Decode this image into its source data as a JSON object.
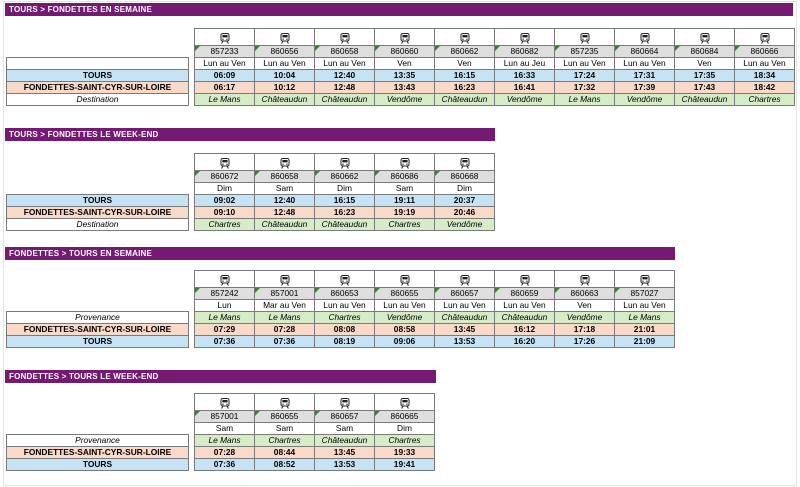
{
  "sections": [
    {
      "title": "TOURS > FONDETTES EN SEMAINE",
      "trains": [
        "857233",
        "860656",
        "860658",
        "860660",
        "860662",
        "860682",
        "857235",
        "860664",
        "860684",
        "860666"
      ],
      "days": [
        "Lun au Ven",
        "Lun au Ven",
        "Lun au Ven",
        "Ven",
        "Ven",
        "Lun au Jeu",
        "Lun au Ven",
        "Lun au Ven",
        "Ven",
        "Lun au Ven"
      ],
      "rows": [
        {
          "label": "TOURS",
          "values": [
            "06:09",
            "10:04",
            "12:40",
            "13:35",
            "16:15",
            "16:33",
            "17:24",
            "17:31",
            "17:35",
            "18:34"
          ]
        },
        {
          "label": "FONDETTES-SAINT-CYR-SUR-LOIRE",
          "values": [
            "06:17",
            "10:12",
            "12:48",
            "13:43",
            "16:23",
            "16:41",
            "17:32",
            "17:39",
            "17:43",
            "18:42"
          ]
        },
        {
          "label": "Destination",
          "values": [
            "Le Mans",
            "Châteaudun",
            "Châteaudun",
            "Vendôme",
            "Châteaudun",
            "Vendôme",
            "Le Mans",
            "Vendôme",
            "Châteaudun",
            "Chartres"
          ]
        }
      ]
    },
    {
      "title": "TOURS > FONDETTES LE WEEK-END",
      "trains": [
        "860672",
        "860658",
        "860662",
        "860686",
        "860668"
      ],
      "days": [
        "Dim",
        "Sam",
        "Dim",
        "Sam",
        "Dim"
      ],
      "rows": [
        {
          "label": "TOURS",
          "values": [
            "09:02",
            "12:40",
            "16:15",
            "19:11",
            "20:37"
          ]
        },
        {
          "label": "FONDETTES-SAINT-CYR-SUR-LOIRE",
          "values": [
            "09:10",
            "12:48",
            "16:23",
            "19:19",
            "20:46"
          ]
        },
        {
          "label": "Destination",
          "values": [
            "Chartres",
            "Châteaudun",
            "Châteaudun",
            "Chartres",
            "Vendôme"
          ]
        }
      ]
    },
    {
      "title": "FONDETTES > TOURS EN SEMAINE",
      "trains": [
        "857242",
        "857001",
        "860653",
        "860655",
        "860657",
        "860659",
        "860663",
        "857027"
      ],
      "days": [
        "Lun",
        "Mar au Ven",
        "Lun au Ven",
        "Lun au Ven",
        "Lun au Ven",
        "Lun au Ven",
        "Ven",
        "Lun au Ven"
      ],
      "rows": [
        {
          "label": "Provenance",
          "values": [
            "Le Mans",
            "Le Mans",
            "Chartres",
            "Vendôme",
            "Châteaudun",
            "Châteaudun",
            "Vendôme",
            "Le Mans"
          ]
        },
        {
          "label": "FONDETTES-SAINT-CYR-SUR-LOIRE",
          "values": [
            "07:29",
            "07:28",
            "08:08",
            "08:58",
            "13:45",
            "16:12",
            "17:18",
            "21:01"
          ]
        },
        {
          "label": "TOURS",
          "values": [
            "07:36",
            "07:36",
            "08:19",
            "09:06",
            "13:53",
            "16:20",
            "17:26",
            "21:09"
          ]
        }
      ]
    },
    {
      "title": "FONDETTES > TOURS LE WEEK-END",
      "trains": [
        "857001",
        "860655",
        "860657",
        "860665"
      ],
      "days": [
        "Sam",
        "Sam",
        "Sam",
        "Dim"
      ],
      "rows": [
        {
          "label": "Provenance",
          "values": [
            "Le Mans",
            "Chartres",
            "Châteaudun",
            "Chartres"
          ]
        },
        {
          "label": "FONDETTES-SAINT-CYR-SUR-LOIRE",
          "values": [
            "07:28",
            "08:44",
            "13:45",
            "19:33"
          ]
        },
        {
          "label": "TOURS",
          "values": [
            "07:36",
            "08:52",
            "13:53",
            "19:41"
          ]
        }
      ]
    }
  ],
  "colors": {
    "banner": "#741a72",
    "tours_row": "#c5e3f5",
    "fondettes_row": "#f9d9c8",
    "destination_row": "#d6ecc7",
    "train_number_cell": "#dedede"
  },
  "icons": {
    "train": "train-icon"
  }
}
